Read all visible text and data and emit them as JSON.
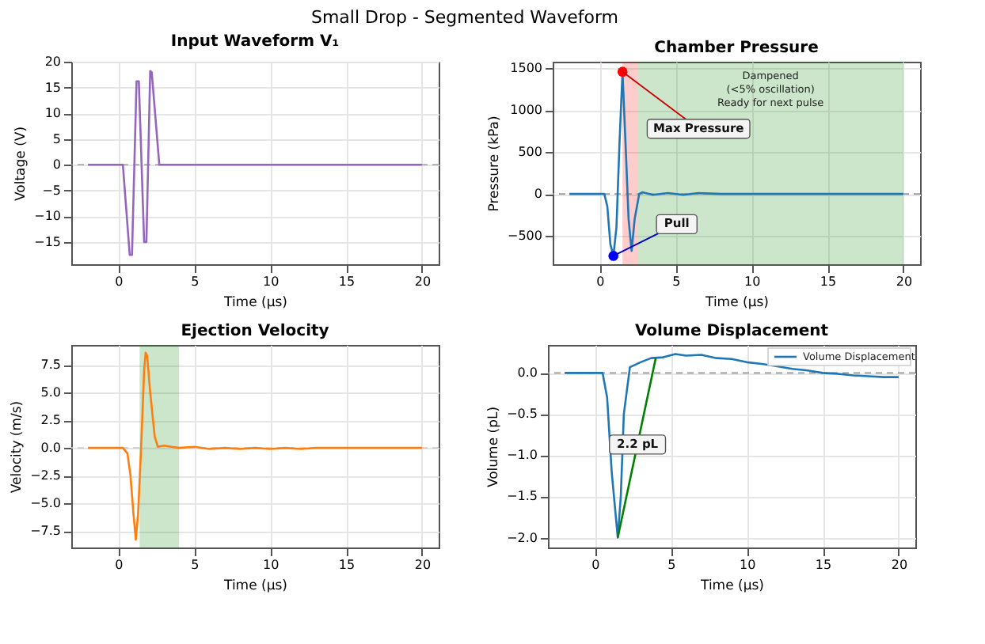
{
  "chart_data": [
    {
      "type": "line",
      "title": "Input Waveform V₁",
      "annotations": [
        "Small Drop - Segmented Waveform"
      ],
      "xlabel": "Time (µs)",
      "ylabel": "Voltage (V)",
      "xlim": [
        -3.1,
        21.1
      ],
      "ylim": [
        -19.3,
        20.0
      ],
      "xticks": [
        0,
        5,
        10,
        15,
        20
      ],
      "yticks": [
        -15,
        -10,
        -5,
        0,
        5,
        10,
        15,
        20
      ],
      "grid": true,
      "ref_lines": [
        {
          "axis": "y",
          "value": 0,
          "color": "#999999",
          "line_style": "dashed"
        }
      ],
      "series": [
        {
          "color": "#9467bd",
          "x": [
            -2,
            0.3,
            0.75,
            0.9,
            1.2,
            1.35,
            1.7,
            1.85,
            2.1,
            2.2,
            2.7,
            20
          ],
          "values": [
            0,
            0,
            -17.5,
            -17.5,
            16.2,
            16.2,
            -15,
            -15,
            18.2,
            18,
            0,
            0
          ]
        }
      ]
    },
    {
      "type": "line",
      "title": "Chamber Pressure",
      "xlabel": "Time (µs)",
      "ylabel": "Pressure (kPa)",
      "xlim": [
        -3.1,
        21.1
      ],
      "ylim": [
        -840,
        1580
      ],
      "xticks": [
        0,
        5,
        10,
        15,
        20
      ],
      "yticks": [
        -500,
        0,
        500,
        1000,
        1500
      ],
      "grid": true,
      "ref_lines": [
        {
          "axis": "y",
          "value": 0,
          "color": "#999999",
          "line_style": "dashed"
        }
      ],
      "bands": [
        {
          "axis": "x",
          "from": 1.5,
          "to": 2.5,
          "color": "#ff0000"
        },
        {
          "axis": "x",
          "from": 2.5,
          "to": 20,
          "color": "#008000",
          "label": "Dampened\n(<5% oscillation)\nReady for next pulse"
        }
      ],
      "annotations": [
        {
          "text": "Max Pressure",
          "x": 1.5,
          "y": 1460
        },
        {
          "text": "Pull",
          "x": 0.9,
          "y": -740
        }
      ],
      "series": [
        {
          "color": "#1f77b4",
          "x": [
            -2,
            0.3,
            0.5,
            0.7,
            0.9,
            1.1,
            1.3,
            1.5,
            1.7,
            1.9,
            2.1,
            2.3,
            2.6,
            2.8,
            3.5,
            4.5,
            5.5,
            6.5,
            8,
            10,
            12,
            14,
            16,
            18,
            20
          ],
          "values": [
            0,
            0,
            -150,
            -600,
            -740,
            -400,
            600,
            1460,
            600,
            -300,
            -680,
            -300,
            0,
            20,
            -10,
            10,
            -10,
            10,
            0,
            0,
            0,
            0,
            0,
            0,
            0
          ]
        },
        {
          "type": "scatter",
          "color": "#ff0000",
          "x": [
            1.5
          ],
          "values": [
            1460
          ]
        },
        {
          "type": "scatter",
          "color": "#0000ff",
          "x": [
            0.9
          ],
          "values": [
            -740
          ]
        }
      ]
    },
    {
      "type": "line",
      "title": "Ejection Velocity",
      "xlabel": "Time (µs)",
      "ylabel": "Velocity (m/s)",
      "xlim": [
        -3.1,
        21.1
      ],
      "ylim": [
        -9.0,
        9.3
      ],
      "xticks": [
        0,
        5,
        10,
        15,
        20
      ],
      "yticks": [
        {
          "value": -7.5,
          "label": "−7.5"
        },
        {
          "value": -5,
          "label": "−5.0"
        },
        {
          "value": -2.5,
          "label": "−2.5"
        },
        {
          "value": 0,
          "label": "0.0"
        },
        {
          "value": 2.5,
          "label": "2.5"
        },
        {
          "value": 5,
          "label": "5.0"
        },
        {
          "value": 7.5,
          "label": "7.5"
        }
      ],
      "grid": true,
      "ref_lines": [
        {
          "axis": "y",
          "value": 0,
          "color": "#cccccc",
          "line_style": "dashed"
        }
      ],
      "bands": [
        {
          "axis": "x",
          "from": 1.4,
          "to": 4.0,
          "color": "#008000"
        }
      ],
      "series": [
        {
          "color": "#ff7f0e",
          "x": [
            -2,
            0.3,
            0.6,
            0.8,
            1.0,
            1.15,
            1.3,
            1.5,
            1.7,
            1.8,
            1.9,
            2.1,
            2.4,
            2.6,
            3.0,
            3.5,
            4,
            5,
            6,
            7,
            8,
            9,
            10,
            11,
            12,
            13,
            15,
            17,
            18,
            20
          ],
          "values": [
            0,
            0,
            -0.5,
            -2.5,
            -6,
            -8.3,
            -6,
            0,
            7,
            8.6,
            8.3,
            5,
            1,
            0.1,
            0.2,
            0.1,
            0,
            0.1,
            -0.1,
            0,
            -0.1,
            0,
            -0.1,
            0,
            -0.1,
            0,
            0,
            0,
            0,
            0
          ]
        }
      ]
    },
    {
      "type": "line",
      "title": "Volume Displacement",
      "xlabel": "Time (µs)",
      "ylabel": "Volume (pL)",
      "xlim": [
        -3.1,
        21.1
      ],
      "ylim": [
        -2.12,
        0.34
      ],
      "xticks": [
        0,
        5,
        10,
        15,
        20
      ],
      "yticks": [
        {
          "value": -2,
          "label": "−2.0"
        },
        {
          "value": -1.5,
          "label": "−1.5"
        },
        {
          "value": -1,
          "label": "−1.0"
        },
        {
          "value": -0.5,
          "label": "−0.5"
        },
        {
          "value": 0,
          "label": "0.0"
        }
      ],
      "grid": true,
      "legend": "top right",
      "ref_lines": [
        {
          "axis": "y",
          "value": 0,
          "color": "#999999",
          "line_style": "dashed"
        }
      ],
      "annotations": [
        {
          "text": "2.2 pL",
          "x": 2.8,
          "y": -0.87
        }
      ],
      "series": [
        {
          "name": "Volume Displacement",
          "color": "#1f77b4",
          "x": [
            -2,
            0.5,
            0.8,
            1.1,
            1.5,
            1.7,
            1.9,
            2.3,
            3,
            3.7,
            4.5,
            5.3,
            6,
            7,
            8,
            9,
            10,
            11,
            12,
            13,
            14,
            15,
            16,
            17,
            18,
            19,
            20
          ],
          "values": [
            0,
            0,
            -0.3,
            -1.2,
            -2.0,
            -1.5,
            -0.5,
            0.07,
            0.13,
            0.18,
            0.19,
            0.23,
            0.21,
            0.22,
            0.18,
            0.17,
            0.13,
            0.11,
            0.08,
            0.05,
            0.03,
            0.0,
            -0.01,
            -0.03,
            -0.04,
            -0.05,
            -0.05
          ]
        },
        {
          "type": "line",
          "color": "#008000",
          "x": [
            1.5,
            4.0
          ],
          "values": [
            -2.0,
            0.18
          ]
        }
      ]
    }
  ]
}
